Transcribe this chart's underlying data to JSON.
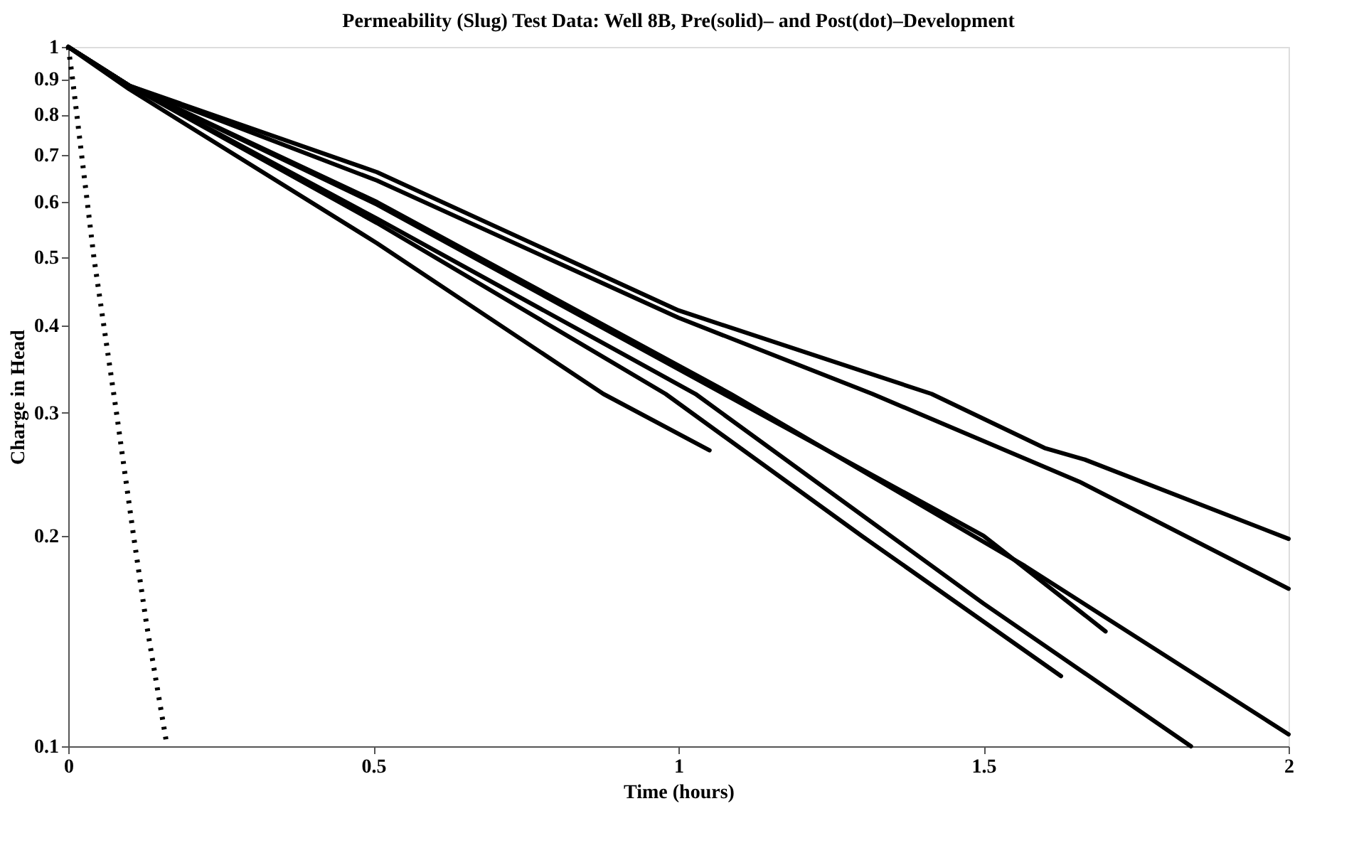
{
  "chart_data": {
    "type": "line",
    "title": "Permeability (Slug) Test Data: Well 8B, Pre(solid)– and Post(dot)–Development",
    "xlabel": "Time (hours)",
    "ylabel": "Charge in Head",
    "log": "y",
    "grid": false,
    "marker": "none",
    "xlim": [
      0,
      2
    ],
    "xticks": [
      0,
      0.5,
      1,
      1.5,
      2
    ],
    "ylim": [
      0.1,
      1
    ],
    "yticks": [
      0.1,
      0.2,
      0.3,
      0.4,
      0.5,
      0.6,
      0.7,
      0.8,
      0.9,
      1
    ],
    "series": [
      {
        "color": "#000000",
        "line_style": "solid",
        "x": [
          0,
          0.1,
          0.506,
          1.0,
          1.415,
          1.6,
          1.666,
          2.0
        ],
        "values": [
          1,
          0.88,
          0.662,
          0.42,
          0.319,
          0.267,
          0.257,
          0.198
        ]
      },
      {
        "color": "#000000",
        "line_style": "solid",
        "x": [
          0,
          0.1,
          0.506,
          1.0,
          1.318,
          1.657,
          2.0
        ],
        "values": [
          1,
          0.88,
          0.644,
          0.41,
          0.319,
          0.239,
          0.168
        ]
      },
      {
        "color": "#000000",
        "line_style": "solid",
        "x": [
          0,
          0.1,
          0.506,
          1.086,
          1.568,
          2.0
        ],
        "values": [
          1,
          0.88,
          0.6,
          0.319,
          0.181,
          0.104
        ]
      },
      {
        "color": "#000000",
        "line_style": "solid",
        "x": [
          0,
          0.1,
          0.506,
          1.086,
          1.5,
          1.7
        ],
        "values": [
          1,
          0.88,
          0.595,
          0.315,
          0.2,
          0.146
        ]
      },
      {
        "color": "#000000",
        "line_style": "solid",
        "x": [
          0,
          0.1,
          0.506,
          1.028,
          1.5,
          1.84
        ],
        "values": [
          1,
          0.88,
          0.568,
          0.319,
          0.16,
          0.1
        ]
      },
      {
        "color": "#000000",
        "line_style": "solid",
        "x": [
          0,
          0.1,
          0.506,
          0.979,
          1.3,
          1.627
        ],
        "values": [
          1,
          0.88,
          0.56,
          0.319,
          0.2,
          0.126
        ]
      },
      {
        "color": "#000000",
        "line_style": "solid",
        "x": [
          0,
          0.1,
          0.506,
          0.877,
          1.051
        ],
        "values": [
          1,
          0.87,
          0.524,
          0.319,
          0.265
        ]
      },
      {
        "color": "#000000",
        "line_style": "dotted",
        "x": [
          0,
          0.007,
          0.042,
          0.079,
          0.107,
          0.128,
          0.162
        ],
        "values": [
          1,
          0.9,
          0.5,
          0.3,
          0.2,
          0.15,
          0.1
        ]
      }
    ]
  }
}
